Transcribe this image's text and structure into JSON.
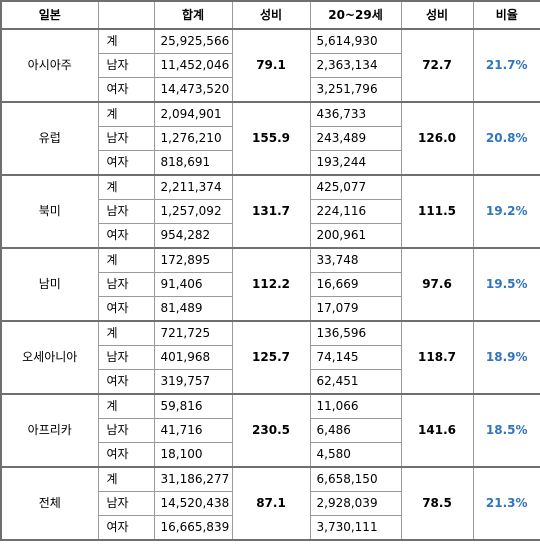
{
  "header": {
    "region": "일본",
    "total": "합계",
    "ratio1": "성비",
    "age": "20~29세",
    "ratio2": "성비",
    "share": "비율"
  },
  "groups": [
    {
      "name": "아시아주",
      "ratio1": "79.1",
      "ratio2": "72.7",
      "share": "21.7%",
      "rows": [
        {
          "label": "계",
          "total": "25,925,566",
          "age": "5,614,930"
        },
        {
          "label": "남자",
          "total": "11,452,046",
          "age": "2,363,134"
        },
        {
          "label": "여자",
          "total": "14,473,520",
          "age": "3,251,796"
        }
      ]
    },
    {
      "name": "유럽",
      "ratio1": "155.9",
      "ratio2": "126.0",
      "share": "20.8%",
      "rows": [
        {
          "label": "계",
          "total": "2,094,901",
          "age": "436,733"
        },
        {
          "label": "남자",
          "total": "1,276,210",
          "age": "243,489"
        },
        {
          "label": "여자",
          "total": "818,691",
          "age": "193,244"
        }
      ]
    },
    {
      "name": "북미",
      "ratio1": "131.7",
      "ratio2": "111.5",
      "share": "19.2%",
      "rows": [
        {
          "label": "계",
          "total": "2,211,374",
          "age": "425,077"
        },
        {
          "label": "남자",
          "total": "1,257,092",
          "age": "224,116"
        },
        {
          "label": "여자",
          "total": "954,282",
          "age": "200,961"
        }
      ]
    },
    {
      "name": "남미",
      "ratio1": "112.2",
      "ratio2": "97.6",
      "share": "19.5%",
      "rows": [
        {
          "label": "계",
          "total": "172,895",
          "age": "33,748"
        },
        {
          "label": "남자",
          "total": "91,406",
          "age": "16,669"
        },
        {
          "label": "여자",
          "total": "81,489",
          "age": "17,079"
        }
      ]
    },
    {
      "name": "오세아니아",
      "ratio1": "125.7",
      "ratio2": "118.7",
      "share": "18.9%",
      "rows": [
        {
          "label": "계",
          "total": "721,725",
          "age": "136,596"
        },
        {
          "label": "남자",
          "total": "401,968",
          "age": "74,145"
        },
        {
          "label": "여자",
          "total": "319,757",
          "age": "62,451"
        }
      ]
    },
    {
      "name": "아프리카",
      "ratio1": "230.5",
      "ratio2": "141.6",
      "share": "18.5%",
      "rows": [
        {
          "label": "계",
          "total": "59,816",
          "age": "11,066"
        },
        {
          "label": "남자",
          "total": "41,716",
          "age": "6,486"
        },
        {
          "label": "여자",
          "total": "18,100",
          "age": "4,580"
        }
      ]
    },
    {
      "name": "전체",
      "ratio1": "87.1",
      "ratio2": "78.5",
      "share": "21.3%",
      "rows": [
        {
          "label": "계",
          "total": "31,186,277",
          "age": "6,658,150"
        },
        {
          "label": "남자",
          "total": "14,520,438",
          "age": "2,928,039"
        },
        {
          "label": "여자",
          "total": "16,665,839",
          "age": "3,730,111"
        }
      ]
    }
  ]
}
